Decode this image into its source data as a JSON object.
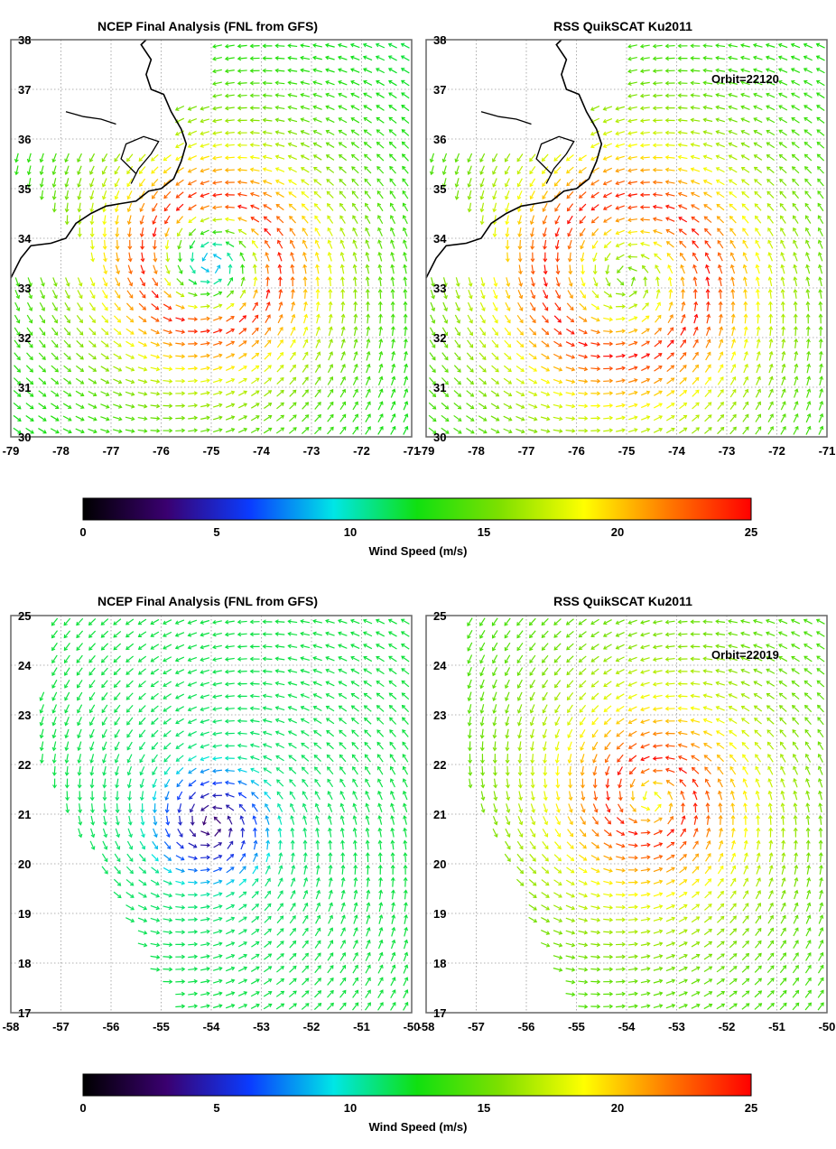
{
  "chart_data": [
    {
      "type": "vector-field",
      "title": "NCEP Final Analysis (FNL from GFS)",
      "orbit": null,
      "x": [
        -79,
        -78,
        -77,
        -76,
        -75,
        -74,
        -73,
        -72,
        -71
      ],
      "xlim": [
        -79,
        -71
      ],
      "y": [
        30,
        31,
        32,
        33,
        34,
        35,
        36,
        37,
        38
      ],
      "ylim": [
        30,
        38
      ],
      "storm_center": [
        -75,
        33.5
      ],
      "max_wind_radius_deg": 1.3,
      "peak_speed_ms": 25,
      "eye_speed_ms": 8,
      "ambient_speed_ms": 11,
      "land": true
    },
    {
      "type": "vector-field",
      "title": "RSS QuikSCAT Ku2011",
      "orbit": "Orbit=22120",
      "x": [
        -79,
        -78,
        -77,
        -76,
        -75,
        -74,
        -73,
        -72,
        -71
      ],
      "xlim": [
        -79,
        -71
      ],
      "y": [
        30,
        31,
        32,
        33,
        34,
        35,
        36,
        37,
        38
      ],
      "ylim": [
        30,
        38
      ],
      "storm_center": [
        -75,
        33.2
      ],
      "max_wind_radius_deg": 1.6,
      "peak_speed_ms": 25,
      "eye_speed_ms": 15,
      "ambient_speed_ms": 12,
      "land": true
    },
    {
      "type": "vector-field",
      "title": "NCEP Final Analysis (FNL from GFS)",
      "orbit": null,
      "x": [
        -58,
        -57,
        -56,
        -55,
        -54,
        -53,
        -52,
        -51,
        -50
      ],
      "xlim": [
        -58,
        -50
      ],
      "y": [
        17,
        18,
        19,
        20,
        21,
        22,
        23,
        24,
        25
      ],
      "ylim": [
        17,
        25
      ],
      "storm_center": [
        -54,
        20.8
      ],
      "max_wind_radius_deg": 1.5,
      "peak_speed_ms": 11,
      "eye_speed_ms": 3,
      "ambient_speed_ms": 12,
      "land": false
    },
    {
      "type": "vector-field",
      "title": "RSS QuikSCAT Ku2011",
      "orbit": "Orbit=22019",
      "x": [
        -58,
        -57,
        -56,
        -55,
        -54,
        -53,
        -52,
        -51,
        -50
      ],
      "xlim": [
        -58,
        -50
      ],
      "y": [
        17,
        18,
        19,
        20,
        21,
        22,
        23,
        24,
        25
      ],
      "ylim": [
        17,
        25
      ],
      "storm_center": [
        -53.5,
        21.3
      ],
      "max_wind_radius_deg": 0.8,
      "peak_speed_ms": 25,
      "eye_speed_ms": 18,
      "ambient_speed_ms": 13,
      "land": false
    }
  ],
  "colorbars": [
    {
      "label": "Wind Speed (m/s)",
      "ticks": [
        0,
        5,
        10,
        15,
        20,
        25
      ],
      "range": [
        0,
        25
      ],
      "stops": [
        "#000000",
        "#3a0070",
        "#0a3cff",
        "#00e6e6",
        "#10e010",
        "#7fe000",
        "#ffff00",
        "#ff7a00",
        "#ff0000"
      ]
    },
    {
      "label": "Wind Speed (m/s)",
      "ticks": [
        0,
        5,
        10,
        15,
        20,
        25
      ],
      "range": [
        0,
        25
      ],
      "stops": [
        "#000000",
        "#3a0070",
        "#0a3cff",
        "#00e6e6",
        "#10e010",
        "#7fe000",
        "#ffff00",
        "#ff7a00",
        "#ff0000"
      ]
    }
  ]
}
